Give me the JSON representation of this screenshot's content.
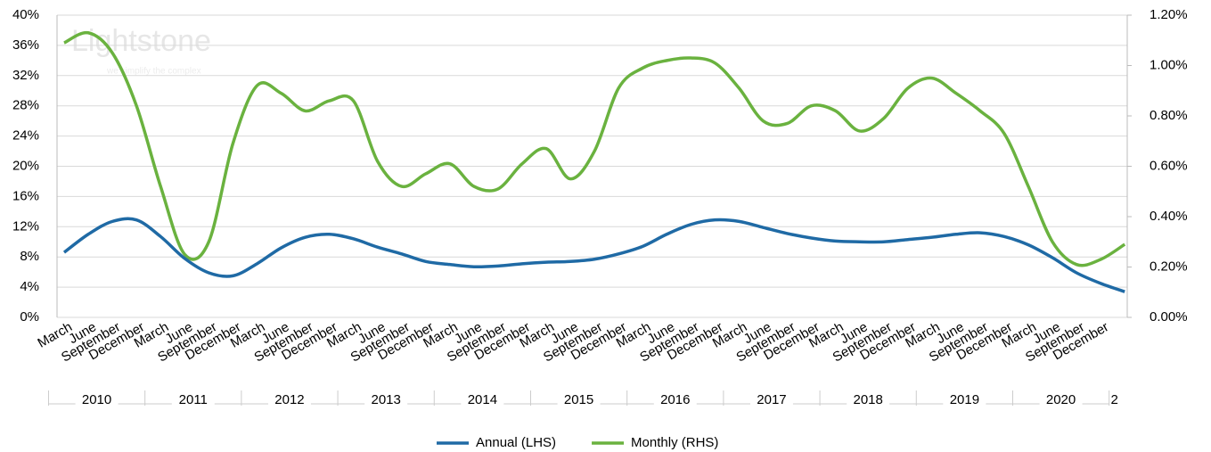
{
  "chart_data": {
    "type": "line",
    "watermark": "Lightstone",
    "watermark_tagline": "we simplify the complex",
    "categories": [
      "March",
      "June",
      "September",
      "December",
      "March",
      "June",
      "September",
      "December",
      "March",
      "June",
      "September",
      "December",
      "March",
      "June",
      "September",
      "December",
      "March",
      "June",
      "September",
      "December",
      "March",
      "June",
      "September",
      "December",
      "March",
      "June",
      "September",
      "December",
      "March",
      "June",
      "September",
      "December",
      "March",
      "June",
      "September",
      "December",
      "March",
      "June",
      "September",
      "December",
      "March",
      "June",
      "September",
      "December",
      null
    ],
    "year_groups": [
      "2010",
      "2011",
      "2012",
      "2013",
      "2014",
      "2015",
      "2016",
      "2017",
      "2018",
      "2019",
      "2020",
      "2"
    ],
    "series": [
      {
        "name": "Annual (LHS)",
        "color": "#1f6aa5",
        "axis": "y",
        "values": [
          8.6,
          11.0,
          12.7,
          12.9,
          10.7,
          7.8,
          5.9,
          5.5,
          7.1,
          9.2,
          10.6,
          11.0,
          10.4,
          9.3,
          8.4,
          7.4,
          7.0,
          6.7,
          6.8,
          7.1,
          7.3,
          7.4,
          7.7,
          8.4,
          9.4,
          11.0,
          12.3,
          12.9,
          12.7,
          11.9,
          11.1,
          10.5,
          10.1,
          10.0,
          10.0,
          10.3,
          10.6,
          11.0,
          11.2,
          10.7,
          9.6,
          7.9,
          5.9,
          4.5,
          3.4
        ]
      },
      {
        "name": "Monthly (RHS)",
        "color": "#6ab23f",
        "axis": "y2",
        "values": [
          1.09,
          1.13,
          1.05,
          0.84,
          0.52,
          0.25,
          0.3,
          0.69,
          0.92,
          0.89,
          0.82,
          0.86,
          0.86,
          0.62,
          0.52,
          0.57,
          0.61,
          0.52,
          0.51,
          0.61,
          0.67,
          0.55,
          0.66,
          0.91,
          0.99,
          1.02,
          1.03,
          1.01,
          0.91,
          0.78,
          0.77,
          0.84,
          0.82,
          0.74,
          0.79,
          0.91,
          0.95,
          0.89,
          0.82,
          0.73,
          0.52,
          0.3,
          0.21,
          0.23,
          0.29
        ]
      }
    ],
    "ylim": [
      0,
      40
    ],
    "yticks": [
      {
        "value": 0,
        "label": "0%"
      },
      {
        "value": 4,
        "label": "4%"
      },
      {
        "value": 8,
        "label": "8%"
      },
      {
        "value": 12,
        "label": "12%"
      },
      {
        "value": 16,
        "label": "16%"
      },
      {
        "value": 20,
        "label": "20%"
      },
      {
        "value": 24,
        "label": "24%"
      },
      {
        "value": 28,
        "label": "28%"
      },
      {
        "value": 32,
        "label": "32%"
      },
      {
        "value": 36,
        "label": "36%"
      },
      {
        "value": 40,
        "label": "40%"
      }
    ],
    "y2lim": [
      0,
      1.2
    ],
    "y2ticks": [
      {
        "value": 0,
        "label": "0.00%"
      },
      {
        "value": 0.2,
        "label": "0.20%"
      },
      {
        "value": 0.4,
        "label": "0.40%"
      },
      {
        "value": 0.6,
        "label": "0.60%"
      },
      {
        "value": 0.8,
        "label": "0.80%"
      },
      {
        "value": 1.0,
        "label": "1.00%"
      },
      {
        "value": 1.2,
        "label": "1.20%"
      }
    ],
    "grid": true,
    "legend": "bottom"
  }
}
